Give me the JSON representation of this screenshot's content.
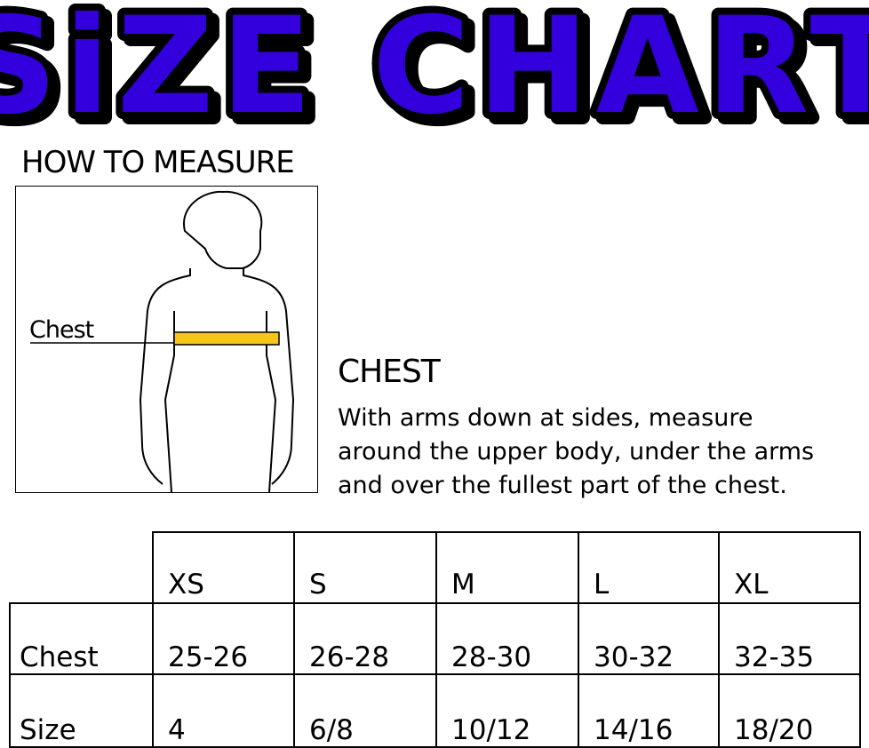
{
  "title": "SiZE CHART",
  "title_color": "#3300dd",
  "how_to_measure": "HOW TO MEASURE",
  "figure": {
    "chest_label": "Chest",
    "tape_color": "#f5c518"
  },
  "chest": {
    "heading": "CHEST",
    "description_lines": [
      "With arms down at sides, measure",
      "around the upper body, under the arms",
      "and over the fullest part of the chest."
    ]
  },
  "table": {
    "columns": [
      "XS",
      "S",
      "M",
      "L",
      "XL"
    ],
    "rows": [
      {
        "label": "Chest",
        "values": [
          "25-26",
          "26-28",
          "28-30",
          "30-32",
          "32-35"
        ]
      },
      {
        "label": "Size",
        "values": [
          "4",
          "6/8",
          "10/12",
          "14/16",
          "18/20"
        ]
      }
    ]
  }
}
